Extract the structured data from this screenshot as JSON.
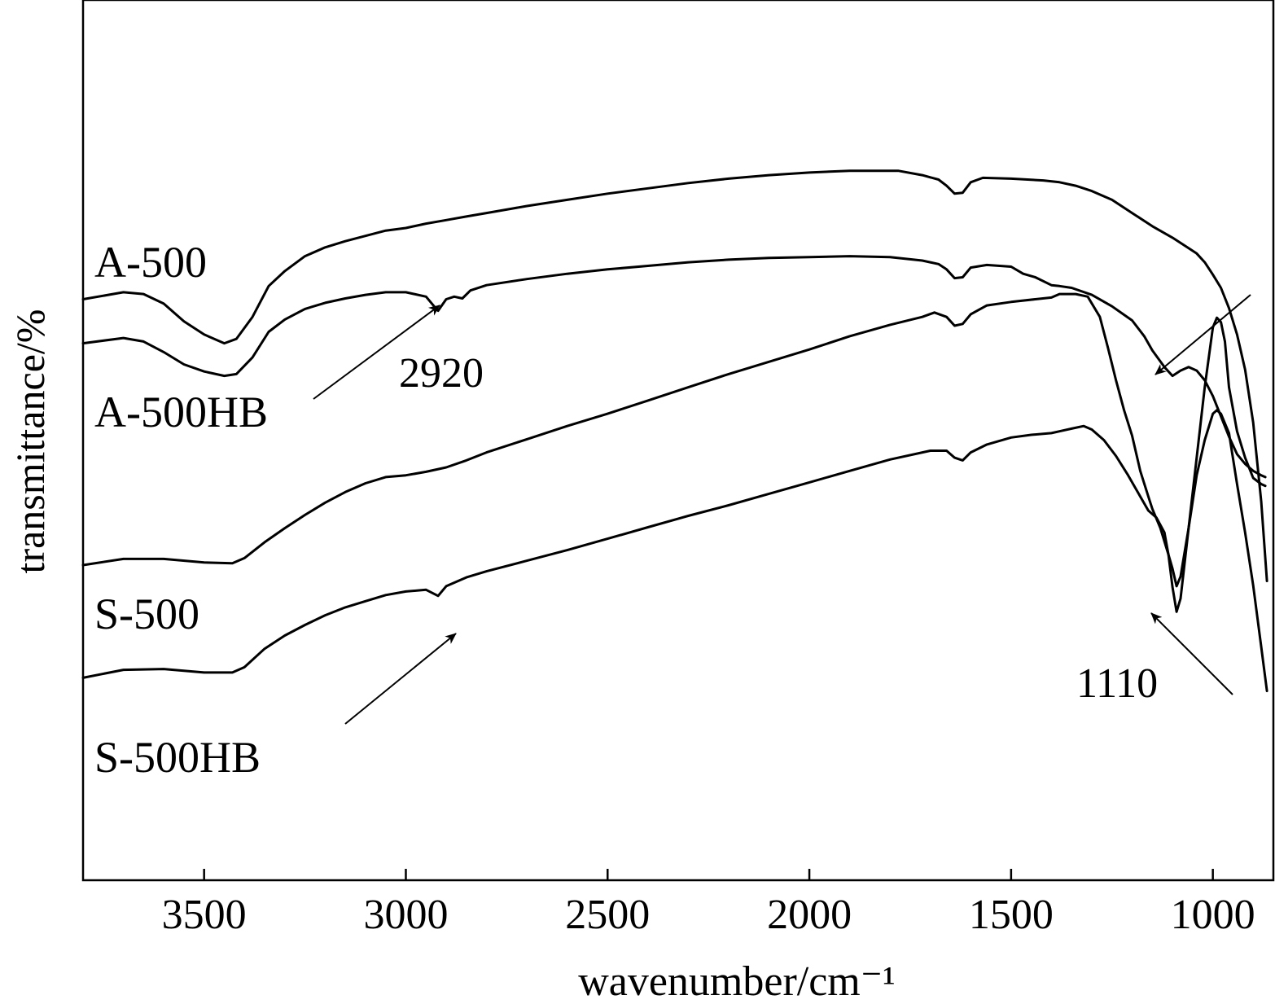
{
  "chart_data": {
    "type": "line",
    "xlabel": "wavenumber/cm⁻¹",
    "ylabel": "transmittance/%",
    "xlim": [
      3800,
      850
    ],
    "ylim": [
      0,
      100
    ],
    "x_reversed": true,
    "x_ticks": [
      3500,
      3000,
      2500,
      2000,
      1500,
      1000
    ],
    "x_tick_labels": [
      "3500",
      "3000",
      "2500",
      "2000",
      "1500",
      "1000"
    ],
    "y_ticks_shown": false,
    "grid": false,
    "legend": "none",
    "series": [
      {
        "name": "A-500",
        "points": [
          [
            3800,
            66.0
          ],
          [
            3700,
            66.8
          ],
          [
            3650,
            66.6
          ],
          [
            3600,
            65.5
          ],
          [
            3550,
            63.5
          ],
          [
            3500,
            62.0
          ],
          [
            3450,
            61.0
          ],
          [
            3420,
            61.5
          ],
          [
            3380,
            64.0
          ],
          [
            3340,
            67.5
          ],
          [
            3300,
            69.2
          ],
          [
            3250,
            70.9
          ],
          [
            3200,
            71.9
          ],
          [
            3150,
            72.6
          ],
          [
            3100,
            73.2
          ],
          [
            3050,
            73.8
          ],
          [
            3000,
            74.1
          ],
          [
            2950,
            74.6
          ],
          [
            2900,
            75.0
          ],
          [
            2850,
            75.4
          ],
          [
            2800,
            75.8
          ],
          [
            2700,
            76.6
          ],
          [
            2600,
            77.3
          ],
          [
            2500,
            78.0
          ],
          [
            2400,
            78.6
          ],
          [
            2300,
            79.2
          ],
          [
            2200,
            79.7
          ],
          [
            2100,
            80.1
          ],
          [
            2000,
            80.4
          ],
          [
            1900,
            80.6
          ],
          [
            1850,
            80.6
          ],
          [
            1780,
            80.6
          ],
          [
            1720,
            80.1
          ],
          [
            1680,
            79.6
          ],
          [
            1660,
            78.9
          ],
          [
            1640,
            78.0
          ],
          [
            1620,
            78.1
          ],
          [
            1600,
            79.3
          ],
          [
            1570,
            79.8
          ],
          [
            1500,
            79.7
          ],
          [
            1420,
            79.5
          ],
          [
            1380,
            79.3
          ],
          [
            1340,
            78.9
          ],
          [
            1300,
            78.3
          ],
          [
            1250,
            77.3
          ],
          [
            1200,
            75.8
          ],
          [
            1150,
            74.3
          ],
          [
            1100,
            73.0
          ],
          [
            1060,
            71.8
          ],
          [
            1040,
            71.2
          ],
          [
            1020,
            70.2
          ],
          [
            1000,
            68.8
          ],
          [
            980,
            67.3
          ],
          [
            960,
            65.0
          ],
          [
            940,
            62.0
          ],
          [
            920,
            58.0
          ],
          [
            900,
            52.0
          ],
          [
            880,
            43.0
          ],
          [
            866,
            34.0
          ]
        ]
      },
      {
        "name": "A-500HB",
        "points": [
          [
            3800,
            61.0
          ],
          [
            3700,
            61.6
          ],
          [
            3650,
            61.2
          ],
          [
            3600,
            60.0
          ],
          [
            3550,
            58.6
          ],
          [
            3500,
            57.8
          ],
          [
            3450,
            57.3
          ],
          [
            3420,
            57.5
          ],
          [
            3380,
            59.4
          ],
          [
            3340,
            62.3
          ],
          [
            3300,
            63.7
          ],
          [
            3250,
            64.9
          ],
          [
            3200,
            65.6
          ],
          [
            3150,
            66.1
          ],
          [
            3100,
            66.5
          ],
          [
            3050,
            66.8
          ],
          [
            3000,
            66.8
          ],
          [
            2950,
            66.3
          ],
          [
            2930,
            65.2
          ],
          [
            2920,
            64.7
          ],
          [
            2900,
            66.0
          ],
          [
            2880,
            66.3
          ],
          [
            2860,
            66.1
          ],
          [
            2840,
            67.0
          ],
          [
            2800,
            67.6
          ],
          [
            2700,
            68.3
          ],
          [
            2600,
            68.9
          ],
          [
            2500,
            69.4
          ],
          [
            2400,
            69.8
          ],
          [
            2300,
            70.2
          ],
          [
            2200,
            70.5
          ],
          [
            2100,
            70.7
          ],
          [
            2000,
            70.8
          ],
          [
            1900,
            70.9
          ],
          [
            1800,
            70.8
          ],
          [
            1720,
            70.4
          ],
          [
            1680,
            70.0
          ],
          [
            1660,
            69.4
          ],
          [
            1640,
            68.4
          ],
          [
            1620,
            68.5
          ],
          [
            1600,
            69.6
          ],
          [
            1560,
            69.9
          ],
          [
            1500,
            69.7
          ],
          [
            1470,
            68.9
          ],
          [
            1440,
            68.5
          ],
          [
            1400,
            67.6
          ],
          [
            1380,
            67.5
          ],
          [
            1350,
            67.3
          ],
          [
            1300,
            66.5
          ],
          [
            1250,
            65.2
          ],
          [
            1200,
            63.6
          ],
          [
            1170,
            61.8
          ],
          [
            1150,
            60.2
          ],
          [
            1120,
            58.3
          ],
          [
            1100,
            57.3
          ],
          [
            1080,
            57.9
          ],
          [
            1060,
            58.3
          ],
          [
            1040,
            57.9
          ],
          [
            1020,
            56.8
          ],
          [
            1000,
            55.0
          ],
          [
            980,
            52.7
          ],
          [
            960,
            50.4
          ],
          [
            940,
            48.4
          ],
          [
            920,
            47.3
          ],
          [
            900,
            46.5
          ],
          [
            880,
            46.0
          ],
          [
            870,
            45.8
          ]
        ]
      },
      {
        "name": "S-500",
        "points": [
          [
            3800,
            35.8
          ],
          [
            3700,
            36.5
          ],
          [
            3600,
            36.5
          ],
          [
            3500,
            36.1
          ],
          [
            3430,
            36.0
          ],
          [
            3400,
            36.6
          ],
          [
            3350,
            38.4
          ],
          [
            3300,
            40.0
          ],
          [
            3250,
            41.5
          ],
          [
            3200,
            42.9
          ],
          [
            3150,
            44.1
          ],
          [
            3100,
            45.1
          ],
          [
            3050,
            45.8
          ],
          [
            3000,
            46.0
          ],
          [
            2950,
            46.4
          ],
          [
            2900,
            46.9
          ],
          [
            2850,
            47.7
          ],
          [
            2800,
            48.6
          ],
          [
            2700,
            50.1
          ],
          [
            2600,
            51.6
          ],
          [
            2500,
            53.0
          ],
          [
            2400,
            54.5
          ],
          [
            2300,
            56.0
          ],
          [
            2200,
            57.5
          ],
          [
            2100,
            58.9
          ],
          [
            2000,
            60.3
          ],
          [
            1900,
            61.8
          ],
          [
            1800,
            63.1
          ],
          [
            1720,
            64.0
          ],
          [
            1690,
            64.5
          ],
          [
            1660,
            64.0
          ],
          [
            1640,
            63.0
          ],
          [
            1620,
            63.2
          ],
          [
            1600,
            64.3
          ],
          [
            1560,
            65.3
          ],
          [
            1500,
            65.7
          ],
          [
            1440,
            66.0
          ],
          [
            1400,
            66.2
          ],
          [
            1380,
            66.6
          ],
          [
            1340,
            66.6
          ],
          [
            1310,
            66.3
          ],
          [
            1280,
            64.0
          ],
          [
            1260,
            60.5
          ],
          [
            1240,
            56.8
          ],
          [
            1220,
            53.4
          ],
          [
            1200,
            50.5
          ],
          [
            1180,
            46.5
          ],
          [
            1160,
            43.6
          ],
          [
            1150,
            42.2
          ],
          [
            1130,
            40.0
          ],
          [
            1110,
            37.0
          ],
          [
            1100,
            33.3
          ],
          [
            1090,
            30.5
          ],
          [
            1080,
            32.0
          ],
          [
            1060,
            40.0
          ],
          [
            1040,
            48.0
          ],
          [
            1020,
            56.0
          ],
          [
            1000,
            62.8
          ],
          [
            990,
            63.9
          ],
          [
            980,
            63.4
          ],
          [
            970,
            61.2
          ],
          [
            960,
            56.0
          ],
          [
            940,
            51.0
          ],
          [
            920,
            48.0
          ],
          [
            900,
            45.7
          ],
          [
            880,
            45.0
          ],
          [
            870,
            44.8
          ]
        ]
      },
      {
        "name": "S-500HB",
        "points": [
          [
            3800,
            23.0
          ],
          [
            3700,
            23.9
          ],
          [
            3600,
            24.0
          ],
          [
            3500,
            23.6
          ],
          [
            3430,
            23.6
          ],
          [
            3400,
            24.2
          ],
          [
            3350,
            26.3
          ],
          [
            3300,
            27.8
          ],
          [
            3250,
            29.0
          ],
          [
            3200,
            30.1
          ],
          [
            3150,
            31.0
          ],
          [
            3100,
            31.7
          ],
          [
            3050,
            32.4
          ],
          [
            3000,
            32.8
          ],
          [
            2950,
            33.0
          ],
          [
            2920,
            32.3
          ],
          [
            2900,
            33.4
          ],
          [
            2850,
            34.4
          ],
          [
            2800,
            35.1
          ],
          [
            2700,
            36.3
          ],
          [
            2600,
            37.5
          ],
          [
            2500,
            38.8
          ],
          [
            2400,
            40.1
          ],
          [
            2300,
            41.4
          ],
          [
            2200,
            42.6
          ],
          [
            2100,
            43.9
          ],
          [
            2000,
            45.2
          ],
          [
            1900,
            46.5
          ],
          [
            1800,
            47.8
          ],
          [
            1700,
            48.8
          ],
          [
            1660,
            48.8
          ],
          [
            1640,
            48.0
          ],
          [
            1620,
            47.7
          ],
          [
            1600,
            48.6
          ],
          [
            1560,
            49.5
          ],
          [
            1500,
            50.3
          ],
          [
            1450,
            50.6
          ],
          [
            1400,
            50.8
          ],
          [
            1380,
            51.0
          ],
          [
            1350,
            51.3
          ],
          [
            1320,
            51.6
          ],
          [
            1300,
            51.2
          ],
          [
            1270,
            50.0
          ],
          [
            1240,
            48.2
          ],
          [
            1210,
            46.0
          ],
          [
            1180,
            43.6
          ],
          [
            1160,
            42.0
          ],
          [
            1140,
            41.2
          ],
          [
            1120,
            39.5
          ],
          [
            1110,
            37.0
          ],
          [
            1100,
            35.4
          ],
          [
            1090,
            33.4
          ],
          [
            1080,
            34.5
          ],
          [
            1060,
            40.0
          ],
          [
            1040,
            46.0
          ],
          [
            1020,
            50.0
          ],
          [
            1000,
            53.0
          ],
          [
            990,
            53.4
          ],
          [
            980,
            53.0
          ],
          [
            960,
            50.8
          ],
          [
            940,
            45.0
          ],
          [
            920,
            39.5
          ],
          [
            900,
            33.5
          ],
          [
            880,
            26.5
          ],
          [
            866,
            21.5
          ]
        ]
      }
    ],
    "annotations": [
      {
        "text": "A-500",
        "series": "A-500"
      },
      {
        "text": "A-500HB",
        "series": "A-500HB"
      },
      {
        "text": "S-500",
        "series": "S-500"
      },
      {
        "text": "S-500HB",
        "series": "S-500HB"
      },
      {
        "text": "2920",
        "x": 2920
      },
      {
        "text": "1110",
        "x": 1110
      }
    ]
  }
}
